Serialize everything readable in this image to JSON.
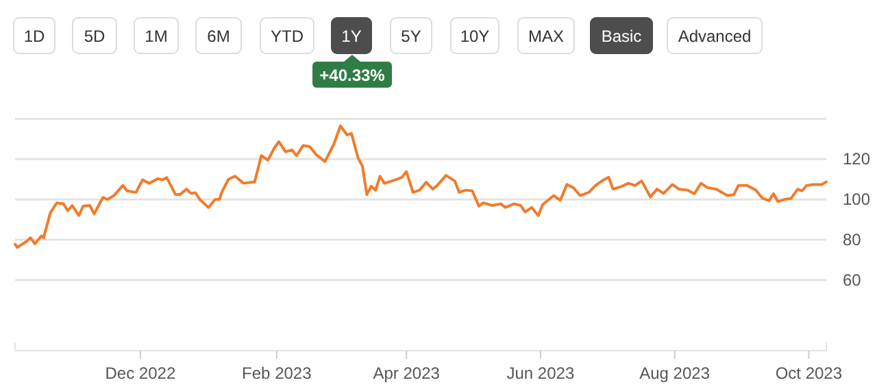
{
  "chart_data": {
    "type": "line",
    "annotations": [
      "1D",
      "5D",
      "1M",
      "6M",
      "YTD",
      "1Y",
      "5Y",
      "10Y",
      "MAX",
      "Basic",
      "Advanced",
      "+40.33%"
    ],
    "x": [
      "2022-10-05",
      "2022-10-06",
      "2022-10-10",
      "2022-10-12",
      "2022-10-14",
      "2022-10-17",
      "2022-10-18",
      "2022-10-21",
      "2022-10-24",
      "2022-10-27",
      "2022-10-29",
      "2022-10-31",
      "2022-11-03",
      "2022-11-05",
      "2022-11-08",
      "2022-11-10",
      "2022-11-12",
      "2022-11-14",
      "2022-11-16",
      "2022-11-19",
      "2022-11-23",
      "2022-11-25",
      "2022-11-29",
      "2022-12-02",
      "2022-12-05",
      "2022-12-09",
      "2022-12-11",
      "2022-12-13",
      "2022-12-17",
      "2022-12-19",
      "2022-12-22",
      "2022-12-24",
      "2022-12-26",
      "2022-12-28",
      "2023-01-01",
      "2023-01-04",
      "2023-01-06",
      "2023-01-07",
      "2023-01-10",
      "2023-01-13",
      "2023-01-17",
      "2023-01-22",
      "2023-01-25",
      "2023-01-28",
      "2023-01-31",
      "2023-02-02",
      "2023-02-05",
      "2023-02-08",
      "2023-02-10",
      "2023-02-13",
      "2023-02-16",
      "2023-02-19",
      "2023-02-23",
      "2023-02-27",
      "2023-03-02",
      "2023-03-05",
      "2023-03-07",
      "2023-03-10",
      "2023-03-12",
      "2023-03-14",
      "2023-03-16",
      "2023-03-18",
      "2023-03-20",
      "2023-03-22",
      "2023-03-27",
      "2023-03-30",
      "2023-04-01",
      "2023-04-04",
      "2023-04-07",
      "2023-04-10",
      "2023-04-13",
      "2023-04-15",
      "2023-04-19",
      "2023-04-23",
      "2023-04-25",
      "2023-04-28",
      "2023-05-01",
      "2023-05-04",
      "2023-05-06",
      "2023-05-10",
      "2023-05-14",
      "2023-05-16",
      "2023-05-20",
      "2023-05-23",
      "2023-05-25",
      "2023-05-28",
      "2023-05-31",
      "2023-06-02",
      "2023-06-07",
      "2023-06-10",
      "2023-06-13",
      "2023-06-16",
      "2023-06-19",
      "2023-06-23",
      "2023-06-26",
      "2023-06-29",
      "2023-07-02",
      "2023-07-04",
      "2023-07-08",
      "2023-07-11",
      "2023-07-14",
      "2023-07-17",
      "2023-07-21",
      "2023-07-24",
      "2023-07-27",
      "2023-07-31",
      "2023-08-03",
      "2023-08-07",
      "2023-08-10",
      "2023-08-13",
      "2023-08-16",
      "2023-08-20",
      "2023-08-25",
      "2023-08-28",
      "2023-08-30",
      "2023-09-03",
      "2023-09-07",
      "2023-09-10",
      "2023-09-13",
      "2023-09-15",
      "2023-09-17",
      "2023-09-20",
      "2023-09-23",
      "2023-09-26",
      "2023-09-28",
      "2023-09-30",
      "2023-10-03",
      "2023-10-07",
      "2023-10-09"
    ],
    "series": [
      {
        "color": "#f07c2c",
        "values": [
          77.8,
          76.2,
          79,
          81,
          78,
          81.9,
          81,
          93.3,
          98.3,
          97.8,
          94.4,
          97,
          92,
          96.7,
          97,
          92.8,
          97,
          101,
          100,
          101.9,
          106.9,
          104.2,
          103.5,
          109.7,
          108,
          110.3,
          109.7,
          110.8,
          102.4,
          102.4,
          105.1,
          103,
          103.3,
          100,
          96,
          100,
          100,
          103.5,
          109.9,
          111.5,
          108,
          108.7,
          121.7,
          119.5,
          125.6,
          128.6,
          123.6,
          124.5,
          121.7,
          126.7,
          126.2,
          122.2,
          118.8,
          127.4,
          136.5,
          132,
          132.7,
          120.6,
          116.5,
          102.4,
          106.5,
          104.6,
          111.5,
          108,
          109.7,
          111,
          113.8,
          103.5,
          104.6,
          108.5,
          105.1,
          106.9,
          111.9,
          109.2,
          103.5,
          104.6,
          104.2,
          96.7,
          98.3,
          97,
          97.8,
          96,
          97.8,
          97,
          93.7,
          96,
          92,
          97.4,
          101.9,
          99.6,
          107.4,
          105.8,
          101.9,
          103.5,
          106.9,
          109.2,
          111,
          105.1,
          106.5,
          108,
          106.9,
          109.2,
          101.2,
          105.1,
          103,
          107.4,
          105.1,
          104.6,
          102.8,
          108,
          105.8,
          105.1,
          101.9,
          102.4,
          106.9,
          106.9,
          104.6,
          100.5,
          99.4,
          102.8,
          98.9,
          100,
          100.5,
          105.1,
          104.2,
          106.9,
          107.4,
          107.4,
          108.7
        ]
      }
    ],
    "xlim": [
      "2022-10-05",
      "2023-10-09"
    ],
    "xticks": [
      {
        "value": "2022-12-01",
        "label": "Dec 2022"
      },
      {
        "value": "2023-02-01",
        "label": "Feb 2023"
      },
      {
        "value": "2023-04-01",
        "label": "Apr 2023"
      },
      {
        "value": "2023-06-01",
        "label": "Jun 2023"
      },
      {
        "value": "2023-08-01",
        "label": "Aug 2023"
      },
      {
        "value": "2023-10-01",
        "label": "Oct 2023"
      }
    ],
    "ylim": [
      25,
      140
    ],
    "yticks": [
      60,
      80,
      100,
      120,
      {
        "value": 140,
        "label": null
      }
    ],
    "grid": "y",
    "marker": "none",
    "line_style": "solid"
  }
}
